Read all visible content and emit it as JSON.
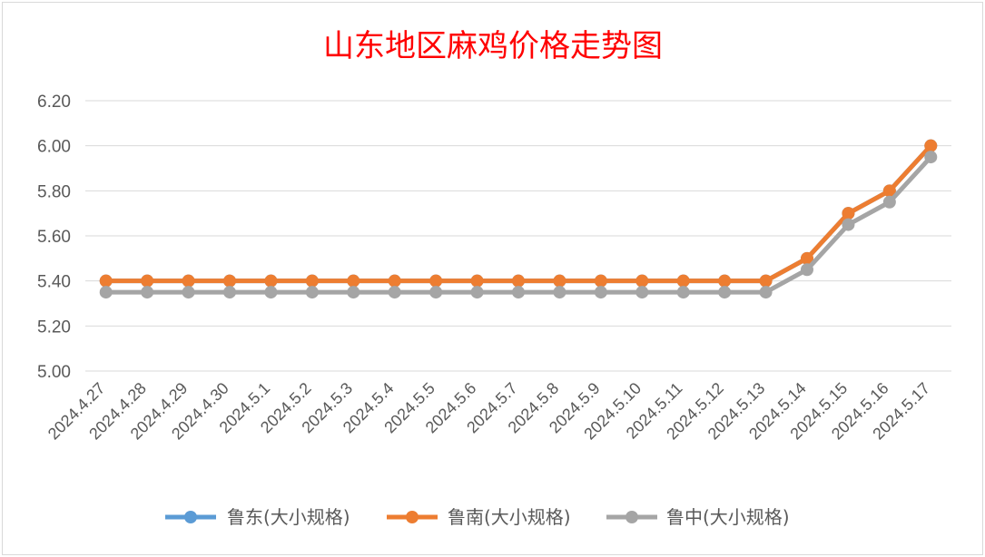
{
  "chart_data": {
    "type": "line",
    "title": "山东地区麻鸡价格走势图",
    "xlabel": "",
    "ylabel": "",
    "ylim": [
      5.0,
      6.2
    ],
    "yticks": [
      "5.00",
      "5.20",
      "5.40",
      "5.60",
      "5.80",
      "6.00",
      "6.20"
    ],
    "grid": true,
    "legend_position": "bottom",
    "categories": [
      "2024.4.27",
      "2024.4.28",
      "2024.4.29",
      "2024.4.30",
      "2024.5.1",
      "2024.5.2",
      "2024.5.3",
      "2024.5.4",
      "2024.5.5",
      "2024.5.6",
      "2024.5.7",
      "2024.5.8",
      "2024.5.9",
      "2024.5.10",
      "2024.5.11",
      "2024.5.12",
      "2024.5.13",
      "2024.5.14",
      "2024.5.15",
      "2024.5.16",
      "2024.5.17"
    ],
    "series": [
      {
        "name": "鲁东(大小规格)",
        "color": "#5b9bd5",
        "values": [
          5.4,
          5.4,
          5.4,
          5.4,
          5.4,
          5.4,
          5.4,
          5.4,
          5.4,
          5.4,
          5.4,
          5.4,
          5.4,
          5.4,
          5.4,
          5.4,
          5.4,
          5.5,
          5.7,
          5.8,
          6.0
        ]
      },
      {
        "name": "鲁南(大小规格)",
        "color": "#ed7d31",
        "values": [
          5.4,
          5.4,
          5.4,
          5.4,
          5.4,
          5.4,
          5.4,
          5.4,
          5.4,
          5.4,
          5.4,
          5.4,
          5.4,
          5.4,
          5.4,
          5.4,
          5.4,
          5.5,
          5.7,
          5.8,
          6.0
        ]
      },
      {
        "name": "鲁中(大小规格)",
        "color": "#a5a5a5",
        "values": [
          5.35,
          5.35,
          5.35,
          5.35,
          5.35,
          5.35,
          5.35,
          5.35,
          5.35,
          5.35,
          5.35,
          5.35,
          5.35,
          5.35,
          5.35,
          5.35,
          5.35,
          5.45,
          5.65,
          5.75,
          5.95
        ]
      }
    ]
  }
}
